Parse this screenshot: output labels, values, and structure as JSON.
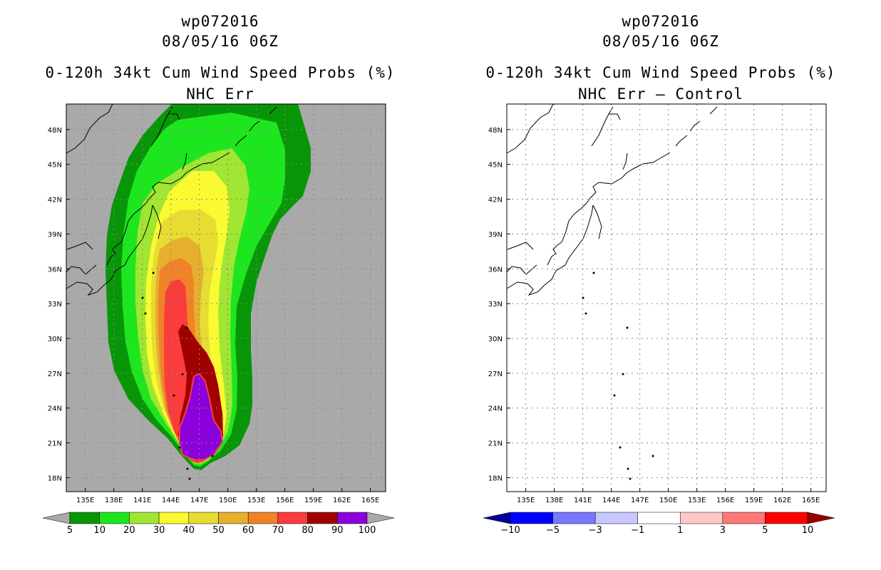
{
  "panels": [
    {
      "storm_id": "wp072016",
      "datetime": "08/05/16 06Z",
      "product": "0-120h 34kt Cum Wind Speed Probs (%)",
      "subtitle": "NHC Err",
      "map_background": "#a9a9a9",
      "colorbar": {
        "colors": [
          "#089608",
          "#1ee61e",
          "#a0e632",
          "#fafa32",
          "#e6dc32",
          "#e6af2d",
          "#f08228",
          "#fa3c3c",
          "#a00000",
          "#8c00dc"
        ],
        "end_colors": [
          "#a9a9a9",
          "#a9a9a9"
        ],
        "labels": [
          "5",
          "10",
          "20",
          "30",
          "40",
          "50",
          "60",
          "70",
          "80",
          "90",
          "100"
        ]
      }
    },
    {
      "storm_id": "wp072016",
      "datetime": "08/05/16 06Z",
      "product": "0-120h 34kt Cum Wind Speed Probs (%)",
      "subtitle": "NHC Err – Control",
      "map_background": "#ffffff",
      "colorbar": {
        "colors": [
          "#0000ff",
          "#7878ff",
          "#c8c8ff",
          "#ffffff",
          "#ffc8c8",
          "#ff7878",
          "#ff0000"
        ],
        "end_colors": [
          "#000096",
          "#960000"
        ],
        "labels": [
          "−10",
          "−5",
          "−3",
          "−1",
          "1",
          "3",
          "5",
          "10"
        ]
      }
    }
  ],
  "axes": {
    "lat_labels": [
      "48N",
      "45N",
      "42N",
      "39N",
      "36N",
      "33N",
      "30N",
      "27N",
      "24N",
      "21N",
      "18N"
    ],
    "lon_labels": [
      "135E",
      "138E",
      "141E",
      "144E",
      "147E",
      "150E",
      "153E",
      "156E",
      "159E",
      "162E",
      "165E"
    ]
  }
}
